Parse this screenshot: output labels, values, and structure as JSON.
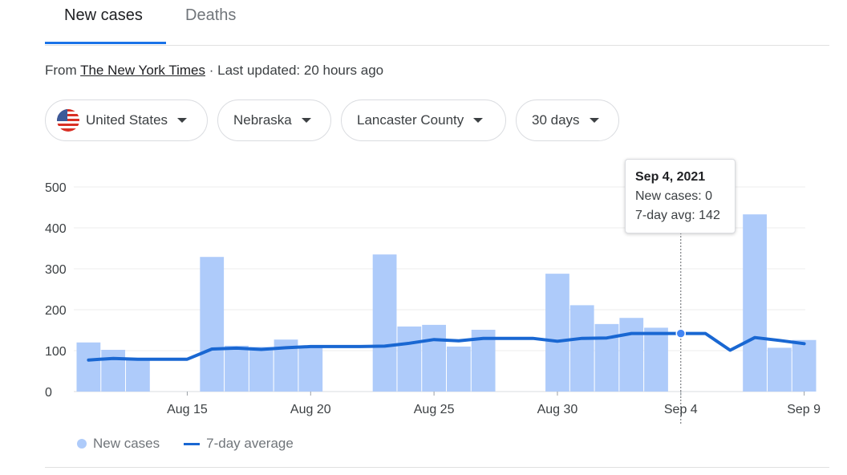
{
  "tabs": [
    {
      "label": "New cases",
      "active": true
    },
    {
      "label": "Deaths",
      "active": false
    }
  ],
  "source": {
    "prefix": "From",
    "name": "The New York Times",
    "updated": "· Last updated: 20 hours ago"
  },
  "filters": [
    {
      "label": "United States",
      "icon": "us-flag-icon"
    },
    {
      "label": "Nebraska"
    },
    {
      "label": "Lancaster County"
    },
    {
      "label": "30 days"
    }
  ],
  "tooltip": {
    "date": "Sep 4, 2021",
    "new_cases": "New cases: 0",
    "avg": "7-day avg: 142"
  },
  "legend": {
    "bars": "New cases",
    "line": "7-day average"
  },
  "colors": {
    "bar": "#aecbfa",
    "line": "#1967d2",
    "accent": "#1a73e8"
  },
  "chart_data": {
    "type": "bar",
    "x": [
      "Aug 11",
      "Aug 12",
      "Aug 13",
      "Aug 14",
      "Aug 15",
      "Aug 16",
      "Aug 17",
      "Aug 18",
      "Aug 19",
      "Aug 20",
      "Aug 21",
      "Aug 22",
      "Aug 23",
      "Aug 24",
      "Aug 25",
      "Aug 26",
      "Aug 27",
      "Aug 28",
      "Aug 29",
      "Aug 30",
      "Aug 31",
      "Sep 1",
      "Sep 2",
      "Sep 3",
      "Sep 4",
      "Sep 5",
      "Sep 6",
      "Sep 7",
      "Sep 8",
      "Sep 9"
    ],
    "xticks": [
      "Aug 15",
      "Aug 20",
      "Aug 25",
      "Aug 30",
      "Sep 4",
      "Sep 9"
    ],
    "series": [
      {
        "name": "New cases",
        "type": "bar",
        "values": [
          120,
          102,
          80,
          0,
          0,
          329,
          112,
          109,
          127,
          112,
          0,
          0,
          335,
          159,
          163,
          110,
          151,
          0,
          0,
          288,
          211,
          165,
          180,
          156,
          0,
          0,
          0,
          433,
          107,
          126
        ]
      },
      {
        "name": "7-day average",
        "type": "line",
        "values": [
          77,
          81,
          79,
          79,
          79,
          104,
          106,
          103,
          107,
          110,
          110,
          110,
          111,
          118,
          127,
          124,
          130,
          130,
          130,
          123,
          130,
          131,
          142,
          142,
          142,
          142,
          101,
          132,
          125,
          117
        ]
      }
    ],
    "ylim": [
      0,
      500
    ],
    "yticks": [
      0,
      100,
      200,
      300,
      400,
      500
    ],
    "highlight": "Sep 4",
    "grid": true,
    "legend": "bottom-left"
  }
}
